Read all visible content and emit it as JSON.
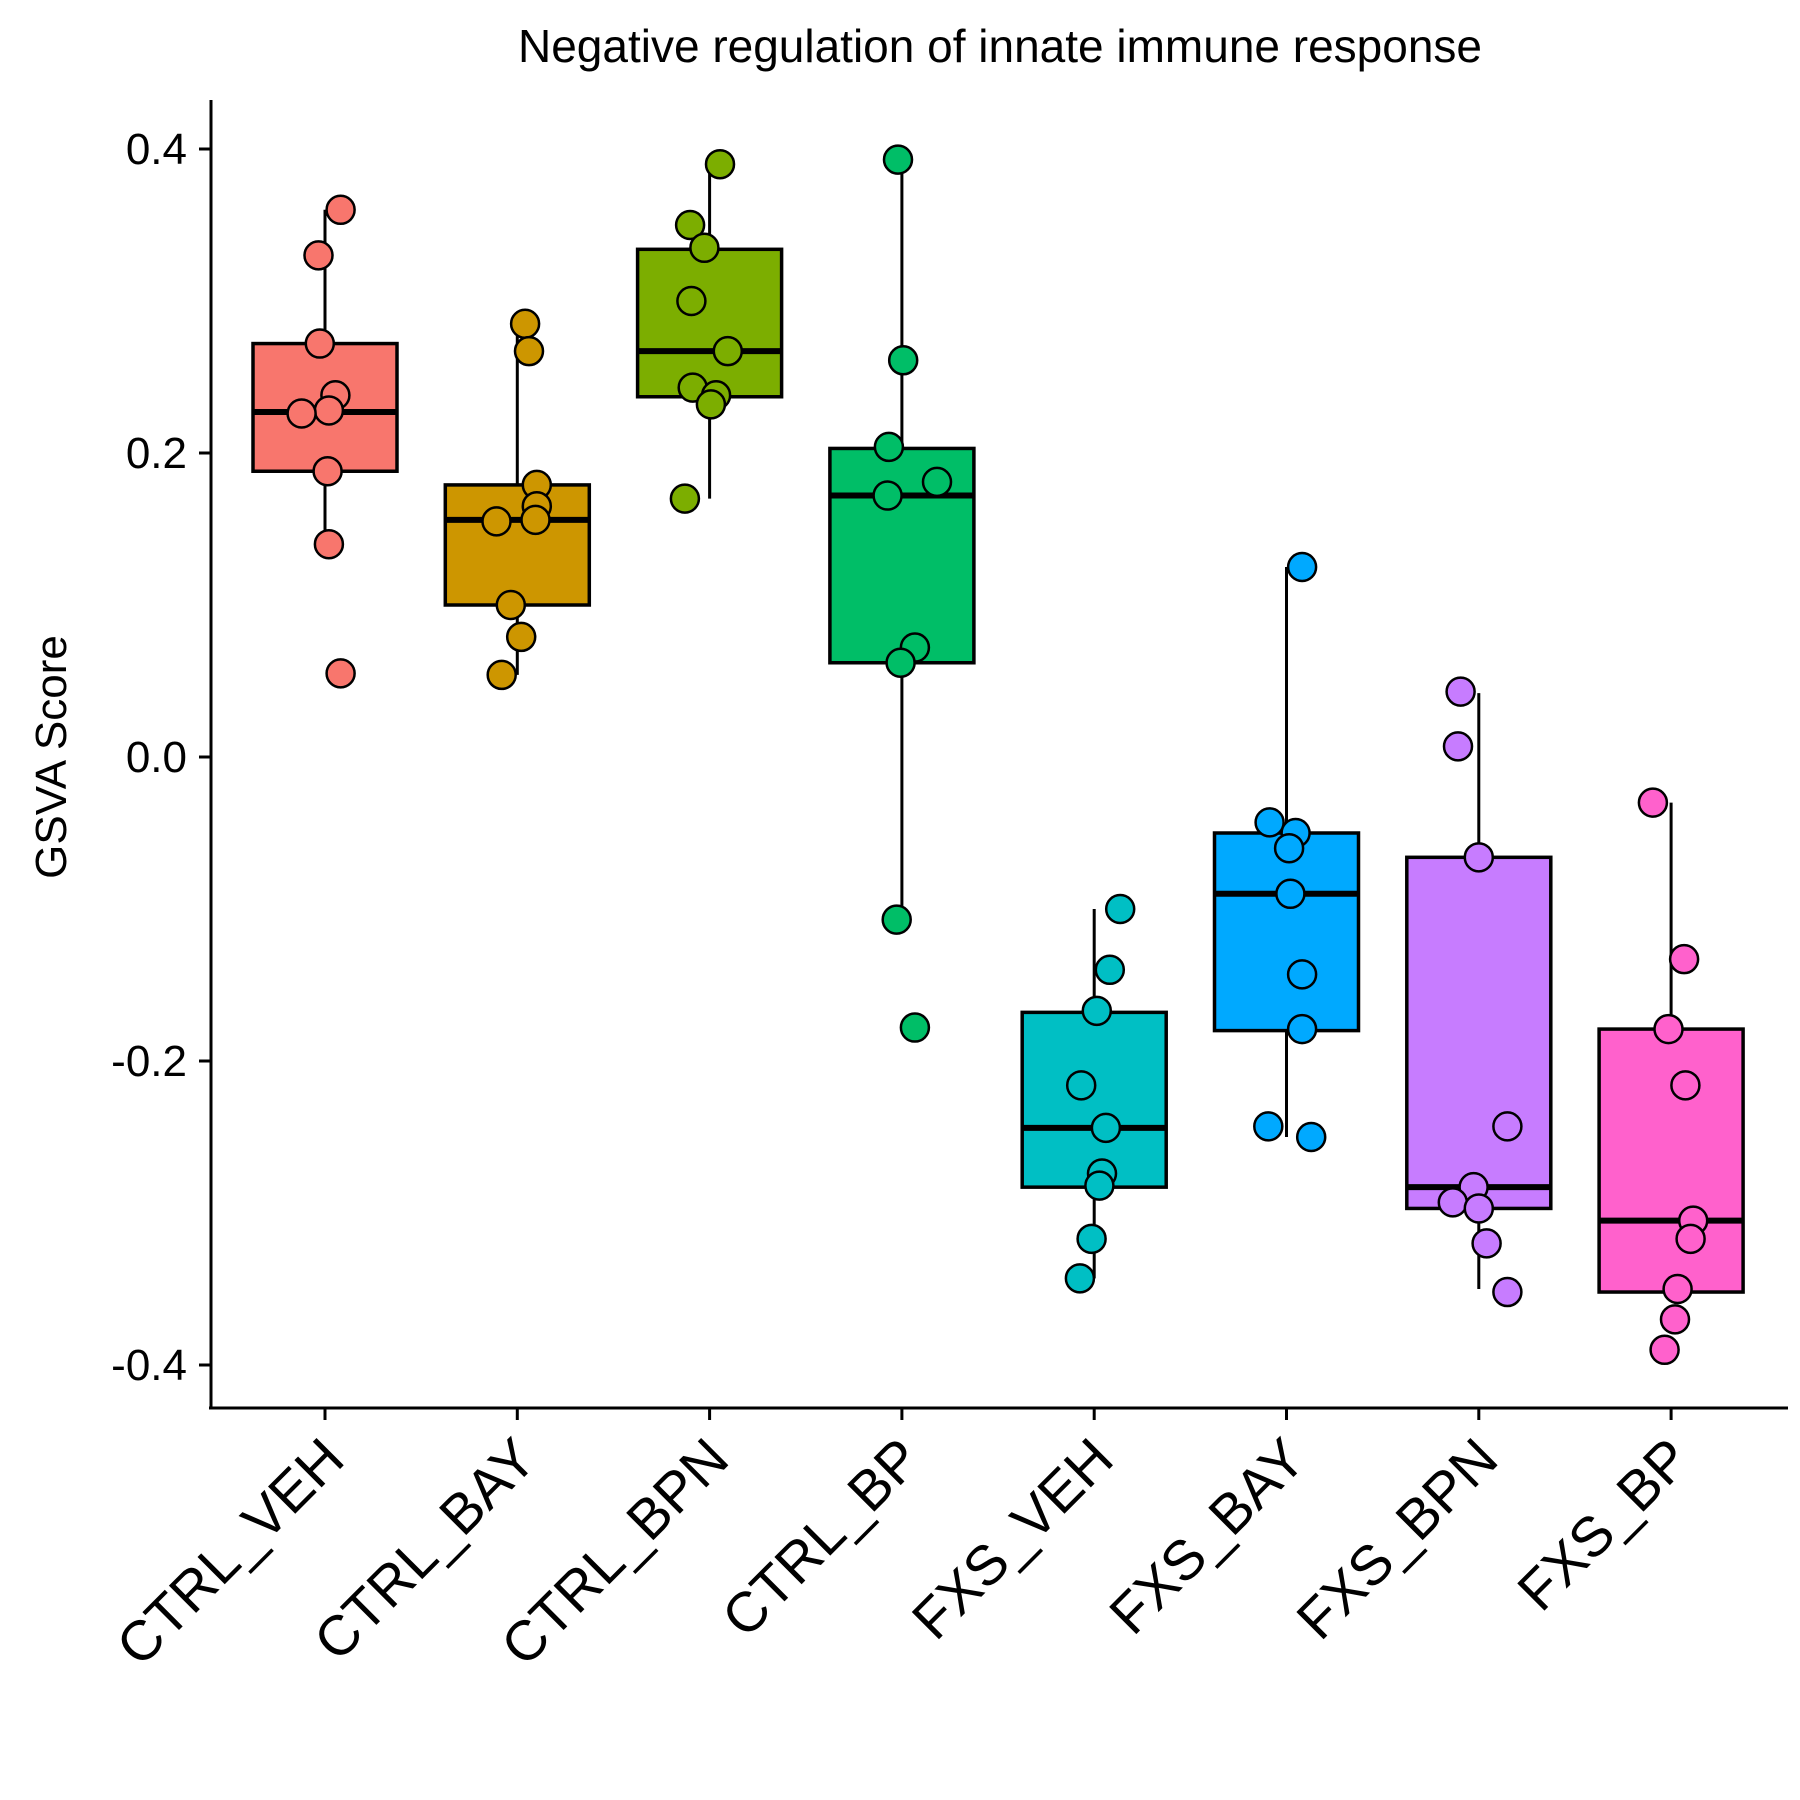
{
  "chart_data": {
    "type": "boxplot",
    "title": "Negative regulation of innate immune response",
    "xlabel": "",
    "ylabel": "GSVA Score",
    "ylim": [
      -0.4,
      0.4
    ],
    "y_ticks": [
      "-0.4",
      "-0.2",
      "0.0",
      "0.2",
      "0.4"
    ],
    "y_tick_values": [
      -0.4,
      -0.2,
      0.0,
      0.2,
      0.4
    ],
    "legend": "none",
    "grid": false,
    "categories": [
      "CTRL_VEH",
      "CTRL_BAY",
      "CTRL_BPN",
      "CTRL_BP",
      "FXS_VEH",
      "FXS_BAY",
      "FXS_BPN",
      "FXS_BP"
    ],
    "series": [
      {
        "category": "CTRL_VEH",
        "color": "#F8766D",
        "box": {
          "whisker_low": 0.14,
          "q1": 0.188,
          "median": 0.227,
          "q3": 0.272,
          "whisker_high": 0.36
        },
        "points": [
          0.36,
          0.33,
          0.272,
          0.238,
          0.228,
          0.226,
          0.188,
          0.14,
          0.055
        ],
        "jitter": [
          0.12,
          -0.05,
          -0.04,
          0.08,
          0.03,
          -0.18,
          0.02,
          0.03,
          0.12
        ]
      },
      {
        "category": "CTRL_BAY",
        "color": "#CD9600",
        "box": {
          "whisker_low": 0.054,
          "q1": 0.1,
          "median": 0.156,
          "q3": 0.179,
          "whisker_high": 0.285
        },
        "points": [
          0.285,
          0.267,
          0.179,
          0.165,
          0.156,
          0.155,
          0.1,
          0.079,
          0.054
        ],
        "jitter": [
          0.06,
          0.09,
          0.15,
          0.15,
          0.14,
          -0.16,
          -0.05,
          0.03,
          -0.12
        ]
      },
      {
        "category": "CTRL_BPN",
        "color": "#7CAE00",
        "box": {
          "whisker_low": 0.17,
          "q1": 0.237,
          "median": 0.267,
          "q3": 0.334,
          "whisker_high": 0.39
        },
        "points": [
          0.39,
          0.35,
          0.335,
          0.3,
          0.267,
          0.243,
          0.238,
          0.232,
          0.17
        ],
        "jitter": [
          0.08,
          -0.15,
          -0.04,
          -0.14,
          0.14,
          -0.13,
          0.05,
          0.01,
          -0.19
        ]
      },
      {
        "category": "CTRL_BP",
        "color": "#00BE67",
        "box": {
          "whisker_low": -0.107,
          "q1": 0.062,
          "median": 0.172,
          "q3": 0.203,
          "whisker_high": 0.393
        },
        "points": [
          0.393,
          0.261,
          0.204,
          0.181,
          0.172,
          0.072,
          0.062,
          -0.107,
          -0.178
        ],
        "jitter": [
          -0.03,
          0.01,
          -0.1,
          0.27,
          -0.11,
          0.1,
          -0.01,
          -0.04,
          0.1
        ]
      },
      {
        "category": "FXS_VEH",
        "color": "#00BFC4",
        "box": {
          "whisker_low": -0.343,
          "q1": -0.283,
          "median": -0.244,
          "q3": -0.168,
          "whisker_high": -0.1
        },
        "points": [
          -0.1,
          -0.14,
          -0.167,
          -0.216,
          -0.244,
          -0.274,
          -0.282,
          -0.317,
          -0.343
        ],
        "jitter": [
          0.2,
          0.12,
          0.02,
          -0.1,
          0.09,
          0.06,
          0.04,
          -0.02,
          -0.11
        ]
      },
      {
        "category": "FXS_BAY",
        "color": "#00A9FF",
        "box": {
          "whisker_low": -0.25,
          "q1": -0.18,
          "median": -0.09,
          "q3": -0.05,
          "whisker_high": 0.125
        },
        "points": [
          0.125,
          -0.043,
          -0.05,
          -0.06,
          -0.09,
          -0.143,
          -0.179,
          -0.243,
          -0.25
        ],
        "jitter": [
          0.12,
          -0.13,
          0.07,
          0.02,
          0.03,
          0.12,
          0.12,
          -0.14,
          0.19
        ]
      },
      {
        "category": "FXS_BPN",
        "color": "#C77CFF",
        "box": {
          "whisker_low": -0.35,
          "q1": -0.297,
          "median": -0.283,
          "q3": -0.066,
          "whisker_high": 0.042
        },
        "points": [
          0.043,
          0.007,
          -0.066,
          -0.243,
          -0.283,
          -0.293,
          -0.297,
          -0.32,
          -0.352
        ],
        "jitter": [
          -0.14,
          -0.16,
          0.0,
          0.22,
          -0.04,
          -0.2,
          0.0,
          0.06,
          0.22
        ]
      },
      {
        "category": "FXS_BP",
        "color": "#FF61CC",
        "box": {
          "whisker_low": -0.352,
          "q1": -0.352,
          "median": -0.305,
          "q3": -0.179,
          "whisker_high": -0.03
        },
        "points": [
          -0.03,
          -0.133,
          -0.179,
          -0.216,
          -0.305,
          -0.317,
          -0.35,
          -0.37,
          -0.39
        ],
        "jitter": [
          -0.14,
          0.1,
          -0.02,
          0.11,
          0.17,
          0.15,
          0.05,
          0.03,
          -0.05
        ]
      }
    ]
  }
}
